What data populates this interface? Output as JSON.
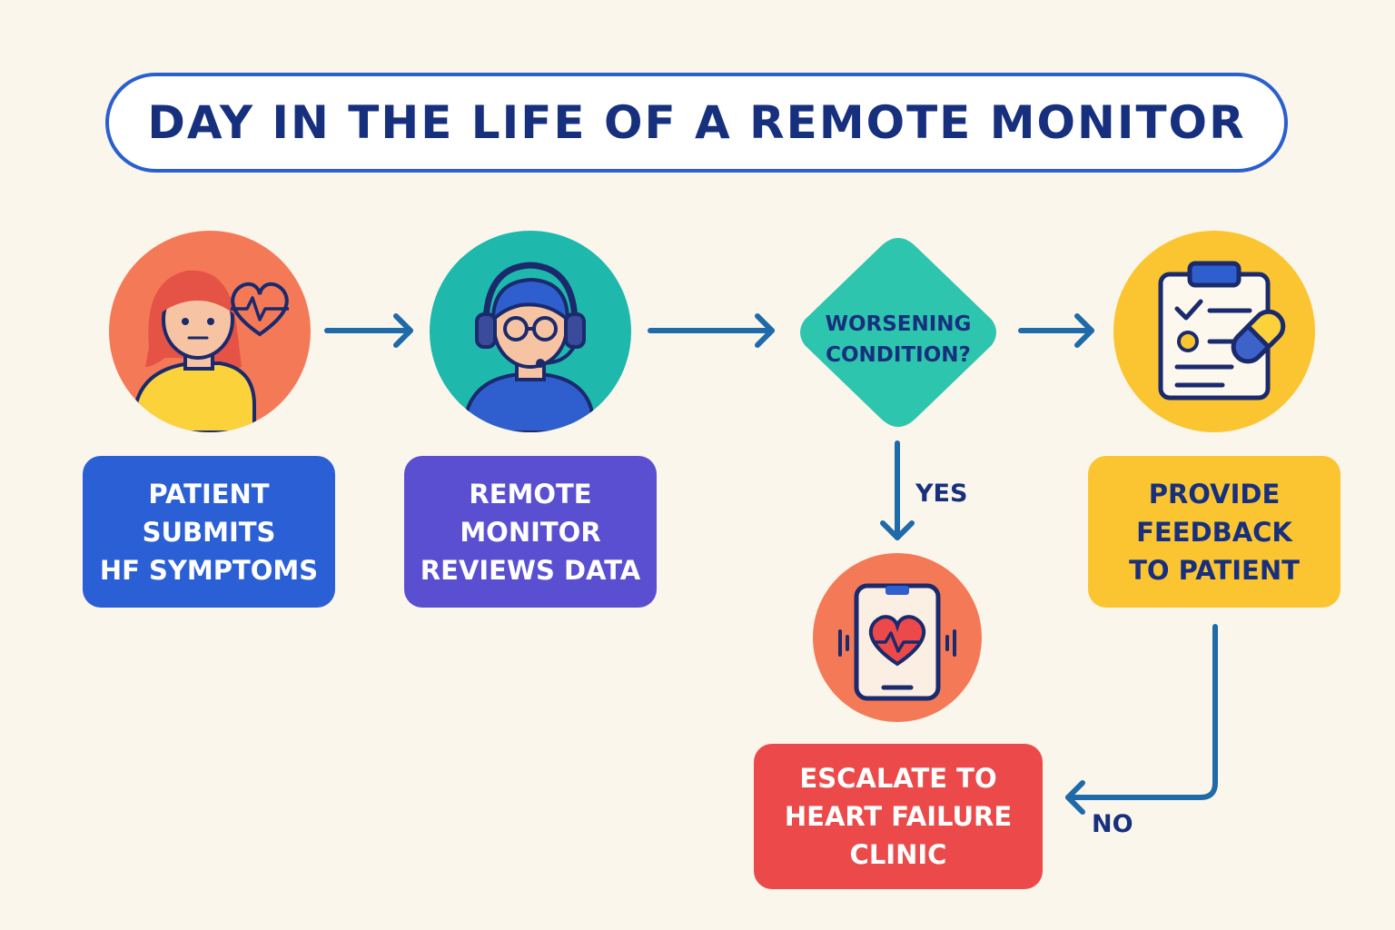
{
  "title": "DAY IN THE LIFE OF A REMOTE MONITOR",
  "steps": {
    "patient": {
      "label": "PATIENT\nSUBMITS\nHF SYMPTOMS",
      "icon": "patient-with-heart-icon",
      "circle_color": "#f47a57",
      "box_color": "#2b5fd6"
    },
    "monitor": {
      "label": "REMOTE\nMONITOR\nREVIEWS DATA",
      "icon": "headset-operator-icon",
      "circle_color": "#1fb8ad",
      "box_color": "#5a4fd1"
    },
    "decision": {
      "label": "WORSENING\nCONDITION?",
      "color": "#2ec5ae"
    },
    "feedback": {
      "label": "PROVIDE\nFEEDBACK\nTO PATIENT",
      "icon": "clipboard-pill-icon",
      "circle_color": "#fbc531",
      "box_color": "#fbc531"
    },
    "escalate": {
      "label": "ESCALATE TO\nHEART FAILURE\nCLINIC",
      "icon": "phone-heart-icon",
      "circle_color": "#f47a57",
      "box_color": "#ec4a4a"
    }
  },
  "edges": {
    "yes_label": "YES",
    "no_label": "NO",
    "color": "#1f6aa8"
  }
}
